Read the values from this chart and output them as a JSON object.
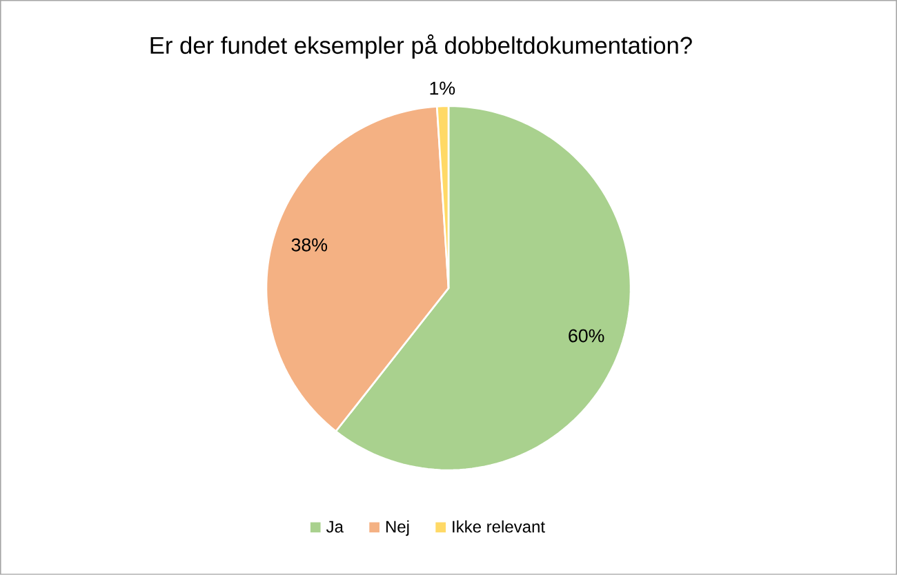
{
  "chart_data": {
    "type": "pie",
    "title": "Er der fundet eksempler på dobbeltdokumentation?",
    "categories": [
      "Ja",
      "Nej",
      "Ikke relevant"
    ],
    "values": [
      60,
      38,
      1
    ],
    "value_labels": [
      "60%",
      "38%",
      "1%"
    ],
    "colors": [
      "#a9d18e",
      "#f4b183",
      "#ffd966"
    ],
    "legend": "bottom"
  }
}
